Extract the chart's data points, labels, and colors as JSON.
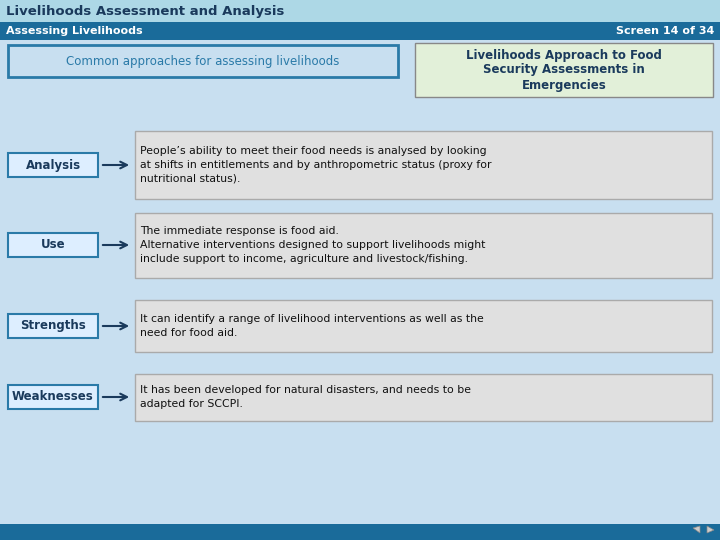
{
  "title": "Livelihoods Assessment and Analysis",
  "subtitle": "Assessing Livelihoods",
  "screen_num": "Screen 14 of 34",
  "title_bg": "#add8e6",
  "title_text_color": "#1a3a5c",
  "subtitle_bg": "#1a6b9a",
  "subtitle_text_color": "#ffffff",
  "body_bg": "#c8dff0",
  "footer_bg": "#1a6b9a",
  "common_approaches_label": "Common approaches for assessing livelihoods",
  "common_box_bg": "#c8dff0",
  "common_box_border": "#2a7aa8",
  "right_box_label": "Livelihoods Approach to Food\nSecurity Assessments in\nEmergencies",
  "right_box_bg": "#e2f0d9",
  "right_box_border": "#888888",
  "label_box_bg": "#ddeeff",
  "label_box_border": "#2a7aa8",
  "content_box_bg": "#e0e0e0",
  "content_box_border": "#aaaaaa",
  "arrow_color": "#1a3a5c",
  "rows": [
    {
      "label": "Analysis",
      "text": "People’s ability to meet their food needs is analysed by looking\nat shifts in entitlements and by anthropometric status (proxy for\nnutritional status)."
    },
    {
      "label": "Use",
      "text": "The immediate response is food aid.\nAlternative interventions designed to support livelihoods might\ninclude support to income, agriculture and livestock/fishing."
    },
    {
      "label": "Strengths",
      "text": "It can identify a range of livelihood interventions as well as the\nneed for food aid."
    },
    {
      "label": "Weaknesses",
      "text": "It has been developed for natural disasters, and needs to be\nadapted for SCCPI."
    }
  ]
}
